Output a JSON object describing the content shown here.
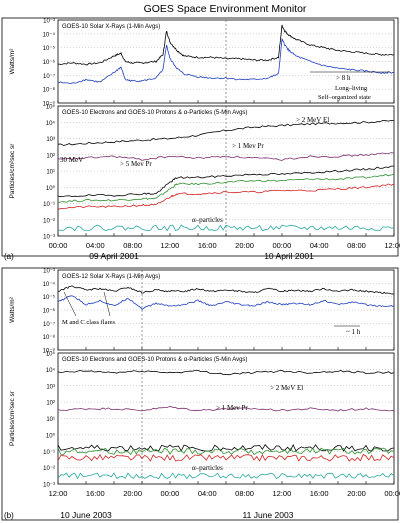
{
  "title": "GOES Space Environment Monitor",
  "chart_data": [
    {
      "type": "line",
      "panel_label": "(a)",
      "xticks": [
        "00:00",
        "04:00",
        "08:00",
        "12:00",
        "16:00",
        "20:00",
        "00:00",
        "04:00",
        "08:00",
        "12:00"
      ],
      "dates": [
        "09 April 2001",
        "10 April 2001"
      ],
      "xrays": {
        "title": "GOES-10 Solar X-Rays (1-Min Avgs)",
        "ylabel": "Watts/m²",
        "yticks": [
          "10⁻³",
          "10⁻⁴",
          "10⁻⁵",
          "10⁻⁶",
          "10⁻⁷",
          "10⁻⁸",
          "10⁻⁹"
        ],
        "ylim_exp": [
          -9,
          -3
        ],
        "annotations": [
          "> 8 h",
          "Long–living",
          "Self–organized state"
        ],
        "series": [
          {
            "color": "#000000",
            "x": [
              0,
              2,
              4,
              6,
              8,
              9,
              9.6,
              10.5,
              12,
              14,
              15,
              15.5,
              16,
              17,
              18,
              20,
              22,
              24,
              26,
              28,
              30,
              31.5,
              32,
              32.4,
              33,
              34,
              36,
              38,
              40,
              42,
              44,
              46,
              48
            ],
            "log10_values": [
              -6.2,
              -6.1,
              -6.2,
              -6.1,
              -5.6,
              -5.4,
              -6.0,
              -6.1,
              -6.1,
              -6.0,
              -5.5,
              -3.8,
              -4.6,
              -5.2,
              -5.6,
              -5.7,
              -5.7,
              -5.8,
              -5.8,
              -5.9,
              -5.9,
              -5.7,
              -3.4,
              -3.8,
              -4.1,
              -4.4,
              -4.8,
              -5.0,
              -5.2,
              -5.3,
              -5.4,
              -5.5,
              -5.5
            ]
          },
          {
            "color": "#1f3fbf",
            "x": [
              0,
              2,
              4,
              6,
              8,
              9,
              9.6,
              10.5,
              12,
              14,
              15,
              15.5,
              16,
              17,
              18,
              20,
              22,
              24,
              26,
              28,
              30,
              31.5,
              32,
              32.4,
              33,
              34,
              36,
              38,
              40,
              42,
              44,
              46,
              48
            ],
            "log10_values": [
              -7.5,
              -7.6,
              -7.3,
              -7.5,
              -6.8,
              -6.4,
              -7.3,
              -7.4,
              -7.4,
              -7.2,
              -6.6,
              -4.8,
              -5.8,
              -6.5,
              -6.9,
              -7.1,
              -7.2,
              -7.2,
              -7.3,
              -7.3,
              -7.2,
              -6.9,
              -4.4,
              -4.8,
              -5.2,
              -5.6,
              -6.0,
              -6.3,
              -6.5,
              -6.6,
              -6.7,
              -6.8,
              -6.8
            ]
          }
        ]
      },
      "particles": {
        "title": "GOES-10 Electrons and GOES-10 Protons & α-Particles (5-Min Avgs)",
        "ylabel": "Particles/cm²sec sr",
        "yticks": [
          "10⁵",
          "10⁴",
          "10³",
          "10²",
          "10¹",
          "10⁰",
          "10⁻¹",
          "10⁻²",
          "10⁻³"
        ],
        "ylim_exp": [
          -3,
          5
        ],
        "labels": [
          "> 2 MeV El",
          "> 1 Mev Pr",
          "30 MeV",
          "> 5 Mev Pr",
          "α–particles"
        ],
        "series": [
          {
            "name": "> 2 MeV El",
            "color": "#000000",
            "x": [
              0,
              4,
              8,
              12,
              16,
              20,
              24,
              28,
              32,
              36,
              40,
              44,
              48
            ],
            "log10_values": [
              2.6,
              2.7,
              2.8,
              2.9,
              3.0,
              3.2,
              3.5,
              3.7,
              3.8,
              3.9,
              3.95,
              4.0,
              4.1
            ]
          },
          {
            "name": "> 1 Mev Pr",
            "color": "#7b2d6f",
            "x": [
              0,
              4,
              8,
              12,
              16,
              20,
              24,
              28,
              32,
              36,
              40,
              44,
              48
            ],
            "log10_values": [
              1.7,
              1.8,
              1.9,
              1.7,
              1.9,
              1.8,
              1.9,
              1.8,
              1.7,
              1.9,
              1.9,
              2.0,
              2.1
            ]
          },
          {
            "name": "> 5 Mev Pr",
            "color": "#000000",
            "x": [
              0,
              4,
              8,
              12,
              14,
              16,
              17,
              20,
              24,
              28,
              32,
              36,
              40,
              44,
              48
            ],
            "log10_values": [
              -0.6,
              -0.5,
              -0.5,
              -0.4,
              -0.4,
              0.3,
              0.6,
              0.6,
              0.7,
              0.8,
              0.8,
              0.9,
              1.0,
              1.1,
              1.3
            ]
          },
          {
            "name": "30 MeV",
            "color": "#2f8f2f",
            "x": [
              0,
              4,
              8,
              12,
              14,
              16,
              17,
              20,
              24,
              28,
              32,
              36,
              40,
              44,
              48
            ],
            "log10_values": [
              -0.9,
              -0.8,
              -0.8,
              -0.7,
              -0.7,
              -0.1,
              0.2,
              0.2,
              0.3,
              0.4,
              0.4,
              0.5,
              0.5,
              0.6,
              0.8
            ]
          },
          {
            "name": "",
            "color": "#d02020",
            "x": [
              0,
              4,
              8,
              12,
              14,
              16,
              17,
              20,
              24,
              28,
              32,
              36,
              40,
              44,
              48
            ],
            "log10_values": [
              -1.3,
              -1.2,
              -1.2,
              -1.1,
              -1.1,
              -0.6,
              -0.4,
              -0.4,
              -0.3,
              -0.3,
              -0.2,
              -0.2,
              -0.1,
              0.0,
              0.2
            ]
          },
          {
            "name": "α–particles",
            "color": "#2aa7a0",
            "x": [
              0,
              4,
              8,
              12,
              16,
              20,
              24,
              28,
              32,
              36,
              40,
              44,
              48
            ],
            "log10_values": [
              -2.5,
              -2.5,
              -2.5,
              -2.5,
              -2.5,
              -2.5,
              -2.5,
              -2.5,
              -2.5,
              -2.5,
              -2.5,
              -2.5,
              -2.5
            ]
          }
        ]
      }
    },
    {
      "type": "line",
      "panel_label": "(b)",
      "xticks": [
        "12:00",
        "16:00",
        "20:00",
        "00:00",
        "04:00",
        "08:00",
        "12:00",
        "16:00",
        "20:00",
        "00:00"
      ],
      "dates": [
        "10 June 2003",
        "11 June 2003"
      ],
      "xrays": {
        "title": "GOES-12 Solar X-Rays (1-Min Avgs)",
        "ylabel": "Watts/m²",
        "yticks": [
          "10⁻³",
          "10⁻⁴",
          "10⁻⁵",
          "10⁻⁶",
          "10⁻⁷",
          "10⁻⁸",
          "10⁻⁹"
        ],
        "ylim_exp": [
          -9,
          -3
        ],
        "annotations": [
          "~ 1 h",
          "M and C class flares"
        ],
        "series": [
          {
            "color": "#000000",
            "x": [
              0,
              2,
              4,
              6,
              8,
              10,
              12,
              14,
              16,
              18,
              20,
              22,
              24,
              26,
              28,
              30,
              32,
              34,
              36,
              38,
              40,
              42,
              44,
              46,
              48
            ],
            "log10_values": [
              -4.6,
              -4.2,
              -4.5,
              -4.4,
              -4.6,
              -4.3,
              -4.7,
              -4.5,
              -4.6,
              -4.6,
              -4.4,
              -4.6,
              -4.5,
              -4.6,
              -4.7,
              -4.4,
              -4.6,
              -4.5,
              -4.6,
              -4.4,
              -4.6,
              -4.5,
              -4.6,
              -4.7,
              -4.8
            ]
          },
          {
            "color": "#1f3fbf",
            "x": [
              0,
              2,
              4,
              6,
              8,
              10,
              12,
              14,
              16,
              18,
              20,
              22,
              24,
              26,
              28,
              30,
              32,
              34,
              36,
              38,
              40,
              42,
              44,
              46,
              48
            ],
            "log10_values": [
              -5.4,
              -4.9,
              -5.6,
              -5.3,
              -5.7,
              -5.1,
              -5.9,
              -5.5,
              -5.7,
              -5.6,
              -5.3,
              -5.7,
              -5.4,
              -5.6,
              -5.7,
              -5.4,
              -5.6,
              -5.5,
              -5.6,
              -5.3,
              -5.6,
              -5.4,
              -5.6,
              -5.7,
              -5.7
            ]
          }
        ]
      },
      "particles": {
        "title": "GOES-10 Electrons and GOES-10 Protons & α-Particles (5-Min Avgs)",
        "ylabel": "Particles/cm²sec sr",
        "yticks": [
          "10⁵",
          "10⁴",
          "10³",
          "10²",
          "10¹",
          "10⁰",
          "10⁻¹",
          "10⁻²",
          "10⁻³"
        ],
        "ylim_exp": [
          -3,
          5
        ],
        "labels": [
          "> 2 MeV El",
          "> 1 Mev Pr",
          "α–particles"
        ],
        "series": [
          {
            "name": "> 2 MeV El",
            "color": "#000000",
            "x": [
              0,
              4,
              8,
              12,
              16,
              20,
              24,
              28,
              32,
              36,
              40,
              44,
              48
            ],
            "log10_values": [
              3.8,
              3.9,
              3.8,
              3.9,
              3.8,
              3.9,
              3.7,
              3.8,
              3.9,
              3.8,
              3.9,
              3.8,
              3.8
            ]
          },
          {
            "name": "> 1 Mev Pr",
            "color": "#7b2d6f",
            "x": [
              0,
              4,
              8,
              12,
              16,
              20,
              24,
              28,
              32,
              36,
              40,
              44,
              48
            ],
            "log10_values": [
              1.5,
              1.6,
              1.6,
              1.5,
              1.7,
              1.5,
              1.6,
              1.6,
              1.5,
              1.6,
              1.5,
              1.6,
              1.5
            ]
          },
          {
            "name": "",
            "color": "#000000",
            "x": [
              0,
              4,
              8,
              12,
              16,
              20,
              24,
              28,
              32,
              36,
              40,
              44,
              48
            ],
            "log10_values": [
              -0.8,
              -0.8,
              -0.8,
              -0.8,
              -0.8,
              -0.8,
              -0.8,
              -0.8,
              -0.8,
              -0.8,
              -0.8,
              -0.8,
              -0.8
            ]
          },
          {
            "name": "",
            "color": "#2f8f2f",
            "x": [
              0,
              4,
              8,
              12,
              16,
              20,
              24,
              28,
              32,
              36,
              40,
              44,
              48
            ],
            "log10_values": [
              -1.0,
              -1.0,
              -1.0,
              -1.0,
              -1.0,
              -1.0,
              -1.0,
              -1.0,
              -1.0,
              -1.0,
              -1.0,
              -1.0,
              -1.0
            ]
          },
          {
            "name": "",
            "color": "#d02020",
            "x": [
              0,
              4,
              8,
              12,
              16,
              20,
              24,
              28,
              32,
              36,
              40,
              44,
              48
            ],
            "log10_values": [
              -1.4,
              -1.4,
              -1.4,
              -1.4,
              -1.4,
              -1.4,
              -1.4,
              -1.4,
              -1.4,
              -1.4,
              -1.4,
              -1.4,
              -1.4
            ]
          },
          {
            "name": "α–particles",
            "color": "#2aa7a0",
            "x": [
              0,
              4,
              8,
              12,
              16,
              20,
              24,
              28,
              32,
              36,
              40,
              44,
              48
            ],
            "log10_values": [
              -2.5,
              -2.5,
              -2.5,
              -2.5,
              -2.5,
              -2.5,
              -2.5,
              -2.5,
              -2.5,
              -2.5,
              -2.5,
              -2.5,
              -2.5
            ]
          }
        ]
      }
    }
  ]
}
